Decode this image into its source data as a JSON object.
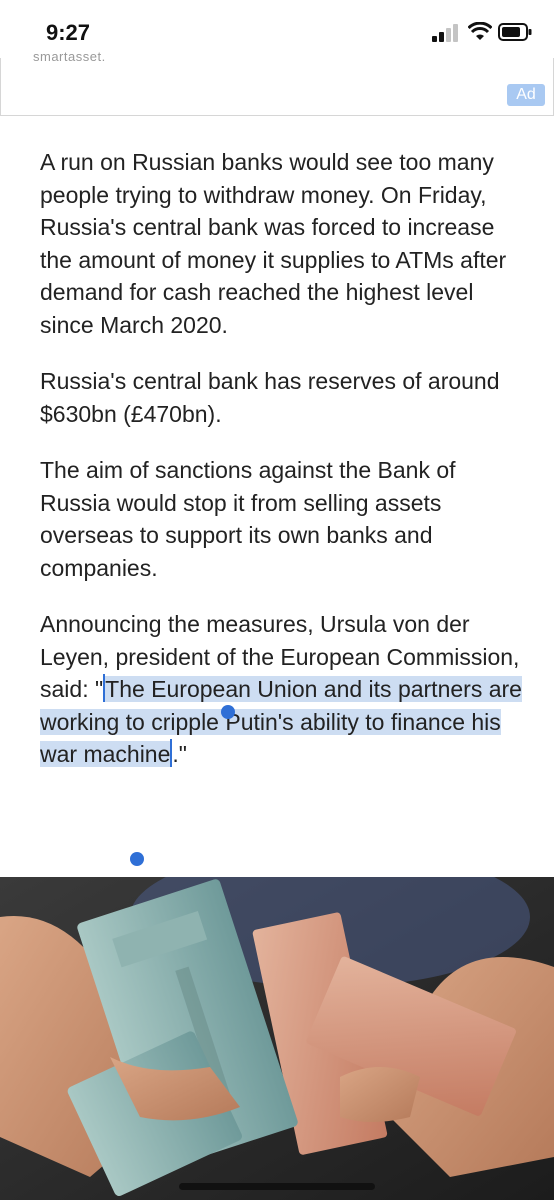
{
  "status_bar": {
    "time": "9:27"
  },
  "ad": {
    "cut_text": "smartasset.",
    "badge": "Ad"
  },
  "article": {
    "paragraphs": [
      "A run on Russian banks would see too many people trying to withdraw money. On Friday, Russia's central bank was forced to increase the amount of money it supplies to ATMs after demand for cash reached the highest level since March 2020.",
      "Russia's central bank has reserves of around $630bn (£470bn).",
      "The aim of sanctions against the Bank of Russia would stop it from selling assets overseas to support its own banks and companies."
    ],
    "quote_para": {
      "before": "Announcing the measures, Ursula von der Leyen, president of the European Commission, said: \"",
      "selected": "The European Union and its partners are working to cripple Putin's ability to finance his war machine",
      "after": ".\""
    }
  },
  "image": {
    "description": "Hands holding Russian ruble banknotes"
  },
  "colors": {
    "selection": "#cdddf2",
    "handle": "#2f6fd6",
    "ad_badge": "#a9c9f2"
  }
}
